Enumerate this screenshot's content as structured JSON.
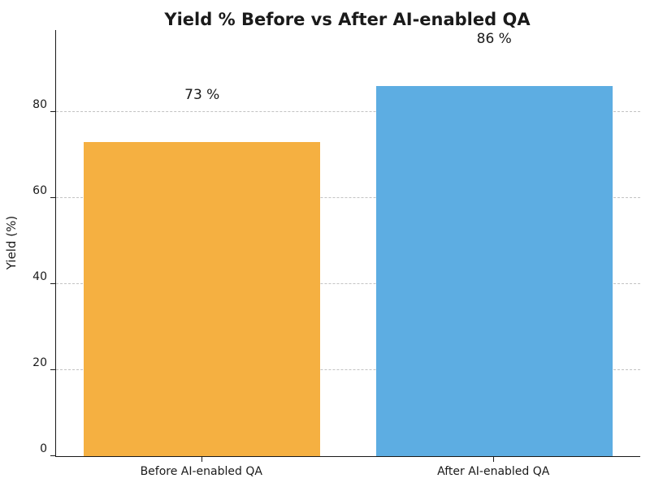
{
  "chart_data": {
    "type": "bar",
    "title": "Yield % Before vs After AI-enabled QA",
    "xlabel": "",
    "ylabel": "Yield (%)",
    "categories": [
      "Before AI-enabled QA",
      "After AI-enabled QA"
    ],
    "values": [
      73,
      86
    ],
    "value_labels": [
      "73 %",
      "86 %"
    ],
    "bar_colors": [
      "#F5B041",
      "#5DADE2"
    ],
    "ylim": [
      0,
      99
    ],
    "y_ticks": [
      0,
      20,
      40,
      60,
      80
    ],
    "grid": "dashed horizontal gridlines at y ticks (except 0)",
    "legend_position": "none",
    "colors": {
      "before_bar": "#F5B041",
      "after_bar": "#5DADE2",
      "gridline": "#c3c3c3",
      "axis": "#1a1a1a",
      "text": "#1a1a1a",
      "background": "#ffffff"
    }
  }
}
